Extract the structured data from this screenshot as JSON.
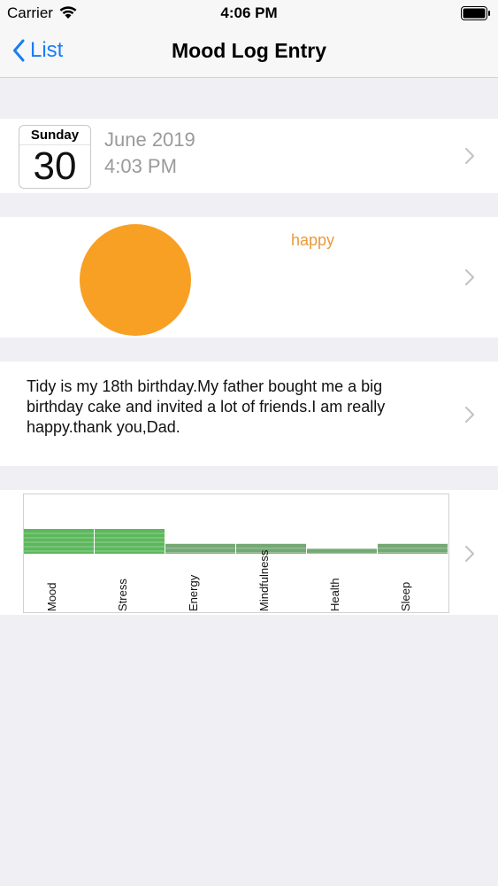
{
  "status_bar": {
    "carrier": "Carrier",
    "time": "4:06 PM"
  },
  "nav": {
    "back_label": "List",
    "title": "Mood Log Entry"
  },
  "entry": {
    "weekday": "Sunday",
    "day": "30",
    "month_year": "June 2019",
    "time": "4:03 PM",
    "mood": "happy",
    "mood_color": "#f8a024",
    "note": "Tidy is my 18th birthday.My father bought me a big birthday cake and invited a lot of friends.I am really happy.thank you,Dad."
  },
  "colors": {
    "accent": "#1a7cf5",
    "bar_high": "#5cb85c",
    "bar_low": "#74a874"
  },
  "chart_data": {
    "type": "bar",
    "categories": [
      "Mood",
      "Stress",
      "Energy",
      "Mindfulness",
      "Health",
      "Sleep"
    ],
    "values": [
      5,
      5,
      2,
      2,
      1,
      2
    ],
    "ylim": [
      0,
      5
    ]
  }
}
